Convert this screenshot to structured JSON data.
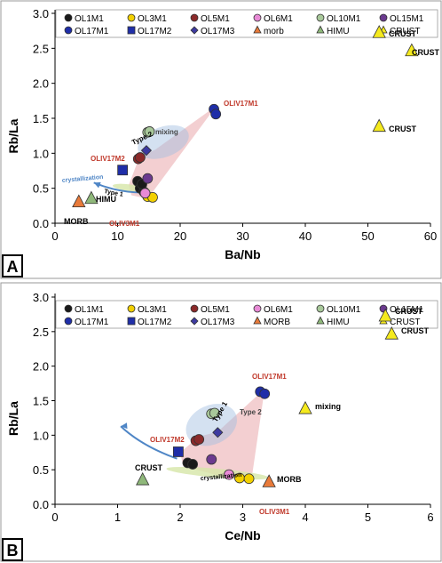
{
  "chart_data": [
    {
      "type": "scatter",
      "panel_label": "A",
      "xlabel": "Ba/Nb",
      "ylabel": "Rb/La",
      "xlim": [
        0,
        60
      ],
      "ylim": [
        0,
        3.0
      ],
      "x_ticks": [
        0,
        10,
        20,
        30,
        40,
        50,
        60
      ],
      "y_ticks": [
        0.0,
        0.5,
        1.0,
        1.5,
        2.0,
        2.5,
        3.0
      ],
      "legend_placement": "top",
      "series": [
        {
          "name": "OL1M1",
          "color": "#1a1a1a",
          "marker": "circle",
          "points": [
            [
              13.2,
              0.6
            ],
            [
              13.6,
              0.5
            ],
            [
              14.2,
              0.45
            ],
            [
              13.9,
              0.56
            ]
          ]
        },
        {
          "name": "OL3M1",
          "color": "#f2d000",
          "marker": "circle",
          "points": [
            [
              14.8,
              0.38
            ],
            [
              15.6,
              0.37
            ]
          ]
        },
        {
          "name": "OL5M1",
          "color": "#8b2a2a",
          "marker": "circle",
          "points": [
            [
              13.3,
              0.92
            ],
            [
              13.6,
              0.94
            ]
          ]
        },
        {
          "name": "OL6M1",
          "color": "#e88ad6",
          "marker": "circle",
          "points": [
            [
              14.4,
              0.43
            ]
          ]
        },
        {
          "name": "OL10M1",
          "color": "#a8c89a",
          "marker": "circle",
          "points": [
            [
              14.8,
              1.3
            ],
            [
              15.1,
              1.31
            ]
          ]
        },
        {
          "name": "OL15M1",
          "color": "#6b3a8f",
          "marker": "circle",
          "points": [
            [
              14.8,
              0.64
            ]
          ]
        },
        {
          "name": "OL17M1",
          "color": "#1f2ea8",
          "marker": "circle",
          "points": [
            [
              25.4,
              1.63
            ],
            [
              25.7,
              1.56
            ]
          ]
        },
        {
          "name": "OL17M2",
          "color": "#1f2ea8",
          "marker": "square",
          "points": [
            [
              10.8,
              0.76
            ]
          ]
        },
        {
          "name": "OL17M3",
          "color": "#3d3aa0",
          "marker": "diamond",
          "points": [
            [
              14.6,
              1.04
            ]
          ]
        },
        {
          "name": "morb",
          "color": "#e87a3a",
          "marker": "triangle",
          "points": [
            [
              3.8,
              0.3
            ]
          ]
        },
        {
          "name": "HIMU",
          "color": "#8fb87a",
          "marker": "triangle",
          "points": [
            [
              5.8,
              0.35
            ]
          ]
        },
        {
          "name": "CRUST",
          "color": "#f5ea1e",
          "marker": "triangle",
          "points": [
            [
              51.8,
              2.72
            ],
            [
              57,
              2.46
            ],
            [
              51.8,
              1.38
            ]
          ]
        }
      ],
      "annotations": [
        "OLIV17M1",
        "OLIV17M2",
        "OLIV3M1",
        "MORB",
        "HIMU",
        "CRUST",
        "CRUST",
        "CRUST",
        "mixing",
        "Type 2",
        "Type 1",
        "crystallization"
      ]
    },
    {
      "type": "scatter",
      "panel_label": "B",
      "xlabel": "Ce/Nb",
      "ylabel": "Rb/La",
      "xlim": [
        0,
        6
      ],
      "ylim": [
        0,
        3.0
      ],
      "x_ticks": [
        0,
        1,
        2,
        3,
        4,
        5,
        6
      ],
      "y_ticks": [
        0.0,
        0.5,
        1.0,
        1.5,
        2.0,
        2.5,
        3.0
      ],
      "legend_placement": "top",
      "series": [
        {
          "name": "OL1M1",
          "color": "#1a1a1a",
          "marker": "circle",
          "points": [
            [
              2.12,
              0.6
            ],
            [
              2.2,
              0.58
            ]
          ]
        },
        {
          "name": "OL3M1",
          "color": "#f2d000",
          "marker": "circle",
          "points": [
            [
              2.95,
              0.38
            ],
            [
              3.1,
              0.37
            ]
          ]
        },
        {
          "name": "OL5M1",
          "color": "#8b2a2a",
          "marker": "circle",
          "points": [
            [
              2.25,
              0.92
            ],
            [
              2.3,
              0.94
            ]
          ]
        },
        {
          "name": "OL6M1",
          "color": "#e88ad6",
          "marker": "circle",
          "points": [
            [
              2.78,
              0.43
            ]
          ]
        },
        {
          "name": "OL10M1",
          "color": "#a8c89a",
          "marker": "circle",
          "points": [
            [
              2.5,
              1.31
            ],
            [
              2.55,
              1.32
            ]
          ]
        },
        {
          "name": "OL15M1",
          "color": "#6b3a8f",
          "marker": "circle",
          "points": [
            [
              2.5,
              0.65
            ]
          ]
        },
        {
          "name": "OL17M1",
          "color": "#1f2ea8",
          "marker": "circle",
          "points": [
            [
              3.28,
              1.63
            ],
            [
              3.35,
              1.6
            ]
          ]
        },
        {
          "name": "OL17M2",
          "color": "#1f2ea8",
          "marker": "square",
          "points": [
            [
              1.97,
              0.76
            ]
          ]
        },
        {
          "name": "OL17M3",
          "color": "#3d3aa0",
          "marker": "diamond",
          "points": [
            [
              2.6,
              1.04
            ]
          ]
        },
        {
          "name": "MORB",
          "color": "#e87a3a",
          "marker": "triangle",
          "points": [
            [
              3.42,
              0.32
            ]
          ]
        },
        {
          "name": "HIMU",
          "color": "#8fb87a",
          "marker": "triangle",
          "points": [
            [
              1.4,
              0.35
            ]
          ]
        },
        {
          "name": "CRUST",
          "color": "#f5ea1e",
          "marker": "triangle",
          "points": [
            [
              5.28,
              2.72
            ],
            [
              5.38,
              2.46
            ],
            [
              4.0,
              1.38
            ]
          ]
        }
      ],
      "annotations": [
        "OLIV17M1",
        "OLIV17M2",
        "OLIV3M1",
        "MORB",
        "CRUST",
        "CRUST",
        "CRUST",
        "mixing",
        "Type 2",
        "Type 1",
        "crystallization"
      ]
    }
  ]
}
